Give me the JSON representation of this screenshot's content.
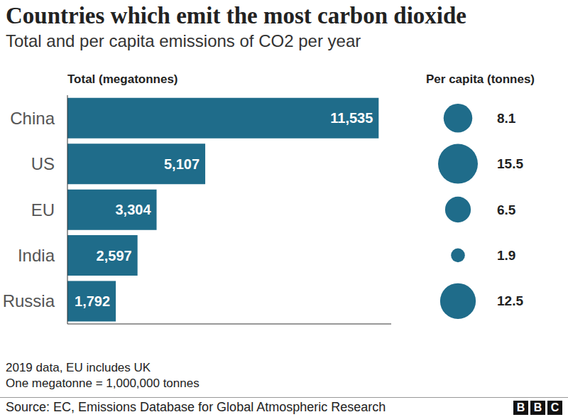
{
  "chart_data": {
    "type": "bar",
    "title": "Countries which emit the most carbon dioxide",
    "subtitle": "Total and per capita emissions of CO2 per year",
    "categories": [
      "China",
      "US",
      "EU",
      "India",
      "Russia"
    ],
    "series": [
      {
        "name": "Total (megatonnes)",
        "type": "bar",
        "color": "#1f6c8a",
        "values": [
          11535,
          5107,
          3304,
          2597,
          1792
        ],
        "value_labels": [
          "11,535",
          "5,107",
          "3,304",
          "2,597",
          "1,792"
        ]
      },
      {
        "name": "Per capita (tonnes)",
        "type": "bubble",
        "color": "#1f6c8a",
        "values": [
          8.1,
          15.5,
          6.5,
          1.9,
          12.5
        ]
      }
    ],
    "orientation": "horizontal",
    "data_labels": true,
    "tick_labels": "y",
    "grid": false,
    "xlim": [
      0,
      12000
    ],
    "notes": [
      "2019 data, EU includes UK",
      "One megatonne = 1,000,000 tonnes"
    ],
    "source": "Source: EC, Emissions Database for Global Atmospheric Research",
    "logo": "BBC"
  }
}
